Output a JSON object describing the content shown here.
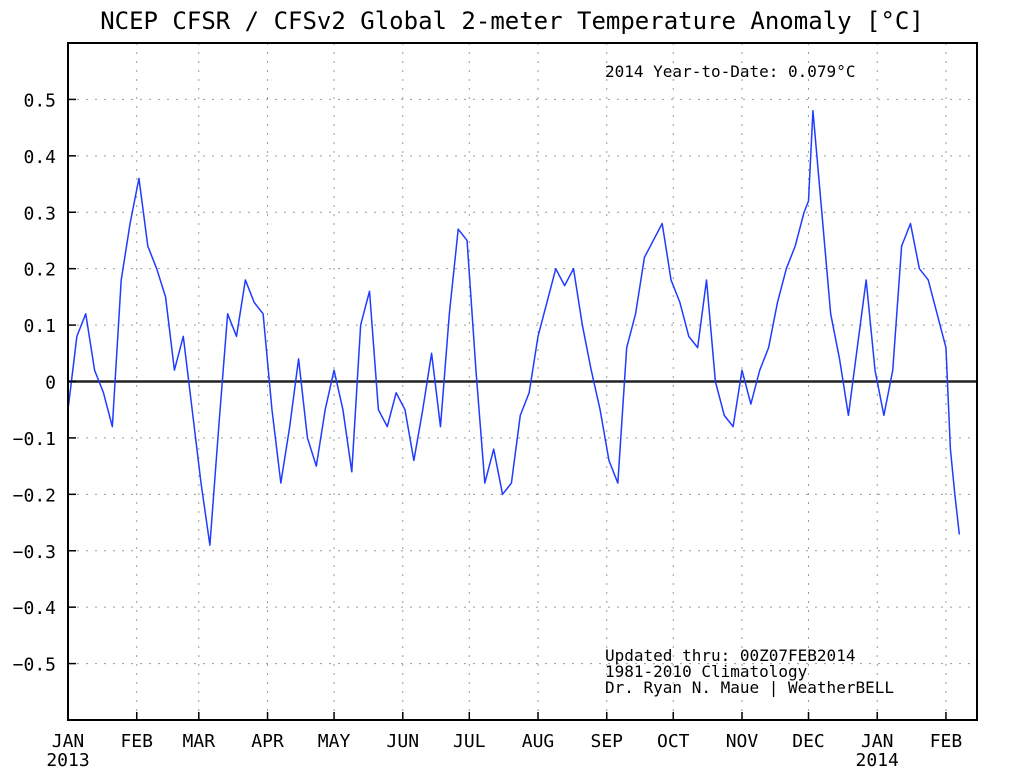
{
  "chart_data": {
    "type": "line",
    "title": "NCEP CFSR / CFSv2 Global 2-meter Temperature Anomaly [°C]",
    "xlabel": "",
    "ylabel": "",
    "ylim": [
      -0.6,
      0.6
    ],
    "yticks": [
      -0.5,
      -0.4,
      -0.3,
      -0.2,
      -0.1,
      0,
      0.1,
      0.2,
      0.3,
      0.4,
      0.5
    ],
    "ytick_labels": [
      "−0.5",
      "−0.4",
      "−0.3",
      "−0.2",
      "−0.1",
      "0",
      "0.1",
      "0.2",
      "0.3",
      "0.4",
      "0.5"
    ],
    "xlim": [
      "2013-01-01",
      "2014-02-15"
    ],
    "xticks": [
      {
        "date": "2013-01-01",
        "label": "JAN",
        "year_label": "2013"
      },
      {
        "date": "2013-02-01",
        "label": "FEB",
        "year_label": ""
      },
      {
        "date": "2013-03-01",
        "label": "MAR",
        "year_label": ""
      },
      {
        "date": "2013-04-01",
        "label": "APR",
        "year_label": ""
      },
      {
        "date": "2013-05-01",
        "label": "MAY",
        "year_label": ""
      },
      {
        "date": "2013-06-01",
        "label": "JUN",
        "year_label": ""
      },
      {
        "date": "2013-07-01",
        "label": "JUL",
        "year_label": ""
      },
      {
        "date": "2013-08-01",
        "label": "AUG",
        "year_label": ""
      },
      {
        "date": "2013-09-01",
        "label": "SEP",
        "year_label": ""
      },
      {
        "date": "2013-10-01",
        "label": "OCT",
        "year_label": ""
      },
      {
        "date": "2013-11-01",
        "label": "NOV",
        "year_label": ""
      },
      {
        "date": "2013-12-01",
        "label": "DEC",
        "year_label": ""
      },
      {
        "date": "2014-01-01",
        "label": "JAN",
        "year_label": "2014"
      },
      {
        "date": "2014-02-01",
        "label": "FEB",
        "year_label": ""
      }
    ],
    "grid": true,
    "zero_line": true,
    "series": [
      {
        "name": "",
        "color": "#1f3cff",
        "x": [
          "2013-01-01",
          "2013-01-05",
          "2013-01-09",
          "2013-01-13",
          "2013-01-17",
          "2013-01-21",
          "2013-01-25",
          "2013-01-29",
          "2013-02-02",
          "2013-02-06",
          "2013-02-10",
          "2013-02-14",
          "2013-02-18",
          "2013-02-22",
          "2013-02-26",
          "2013-03-02",
          "2013-03-06",
          "2013-03-10",
          "2013-03-14",
          "2013-03-18",
          "2013-03-22",
          "2013-03-26",
          "2013-03-30",
          "2013-04-03",
          "2013-04-07",
          "2013-04-11",
          "2013-04-15",
          "2013-04-19",
          "2013-04-23",
          "2013-04-27",
          "2013-05-01",
          "2013-05-05",
          "2013-05-09",
          "2013-05-13",
          "2013-05-17",
          "2013-05-21",
          "2013-05-25",
          "2013-05-29",
          "2013-06-02",
          "2013-06-06",
          "2013-06-10",
          "2013-06-14",
          "2013-06-18",
          "2013-06-22",
          "2013-06-26",
          "2013-06-30",
          "2013-07-04",
          "2013-07-08",
          "2013-07-12",
          "2013-07-16",
          "2013-07-20",
          "2013-07-24",
          "2013-07-28",
          "2013-08-01",
          "2013-08-05",
          "2013-08-09",
          "2013-08-13",
          "2013-08-17",
          "2013-08-21",
          "2013-08-25",
          "2013-08-29",
          "2013-09-02",
          "2013-09-06",
          "2013-09-10",
          "2013-09-14",
          "2013-09-18",
          "2013-09-22",
          "2013-09-26",
          "2013-09-30",
          "2013-10-04",
          "2013-10-08",
          "2013-10-12",
          "2013-10-16",
          "2013-10-20",
          "2013-10-24",
          "2013-10-28",
          "2013-11-01",
          "2013-11-05",
          "2013-11-09",
          "2013-11-13",
          "2013-11-17",
          "2013-11-21",
          "2013-11-25",
          "2013-11-29",
          "2013-12-01",
          "2013-12-03",
          "2013-12-07",
          "2013-12-11",
          "2013-12-15",
          "2013-12-19",
          "2013-12-23",
          "2013-12-27",
          "2013-12-31",
          "2014-01-04",
          "2014-01-08",
          "2014-01-12",
          "2014-01-16",
          "2014-01-20",
          "2014-01-24",
          "2014-01-28",
          "2014-02-01",
          "2014-02-03",
          "2014-02-05",
          "2014-02-07"
        ],
        "values": [
          -0.05,
          0.08,
          0.12,
          0.02,
          -0.02,
          -0.08,
          0.18,
          0.28,
          0.36,
          0.24,
          0.2,
          0.15,
          0.02,
          0.08,
          -0.05,
          -0.18,
          -0.29,
          -0.08,
          0.12,
          0.08,
          0.18,
          0.14,
          0.12,
          -0.05,
          -0.18,
          -0.08,
          0.04,
          -0.1,
          -0.15,
          -0.05,
          0.02,
          -0.05,
          -0.16,
          0.1,
          0.16,
          -0.05,
          -0.08,
          -0.02,
          -0.05,
          -0.14,
          -0.05,
          0.05,
          -0.08,
          0.12,
          0.27,
          0.25,
          0.02,
          -0.18,
          -0.12,
          -0.2,
          -0.18,
          -0.06,
          -0.02,
          0.08,
          0.14,
          0.2,
          0.17,
          0.2,
          0.1,
          0.02,
          -0.05,
          -0.14,
          -0.18,
          0.06,
          0.12,
          0.22,
          0.25,
          0.28,
          0.18,
          0.14,
          0.08,
          0.06,
          0.18,
          0.0,
          -0.06,
          -0.08,
          0.02,
          -0.04,
          0.02,
          0.06,
          0.14,
          0.2,
          0.24,
          0.3,
          0.32,
          0.48,
          0.3,
          0.12,
          0.04,
          -0.06,
          0.06,
          0.18,
          0.02,
          -0.06,
          0.02,
          0.24,
          0.28,
          0.2,
          0.18,
          0.12,
          0.06,
          -0.12,
          -0.2,
          -0.27
        ]
      }
    ],
    "annotations": {
      "ytd": "2014 Year-to-Date: 0.079°C",
      "updated": "Updated thru: 00Z07FEB2014",
      "climatology": "1981-2010 Climatology",
      "credit": "Dr. Ryan N. Maue | WeatherBELL"
    }
  }
}
